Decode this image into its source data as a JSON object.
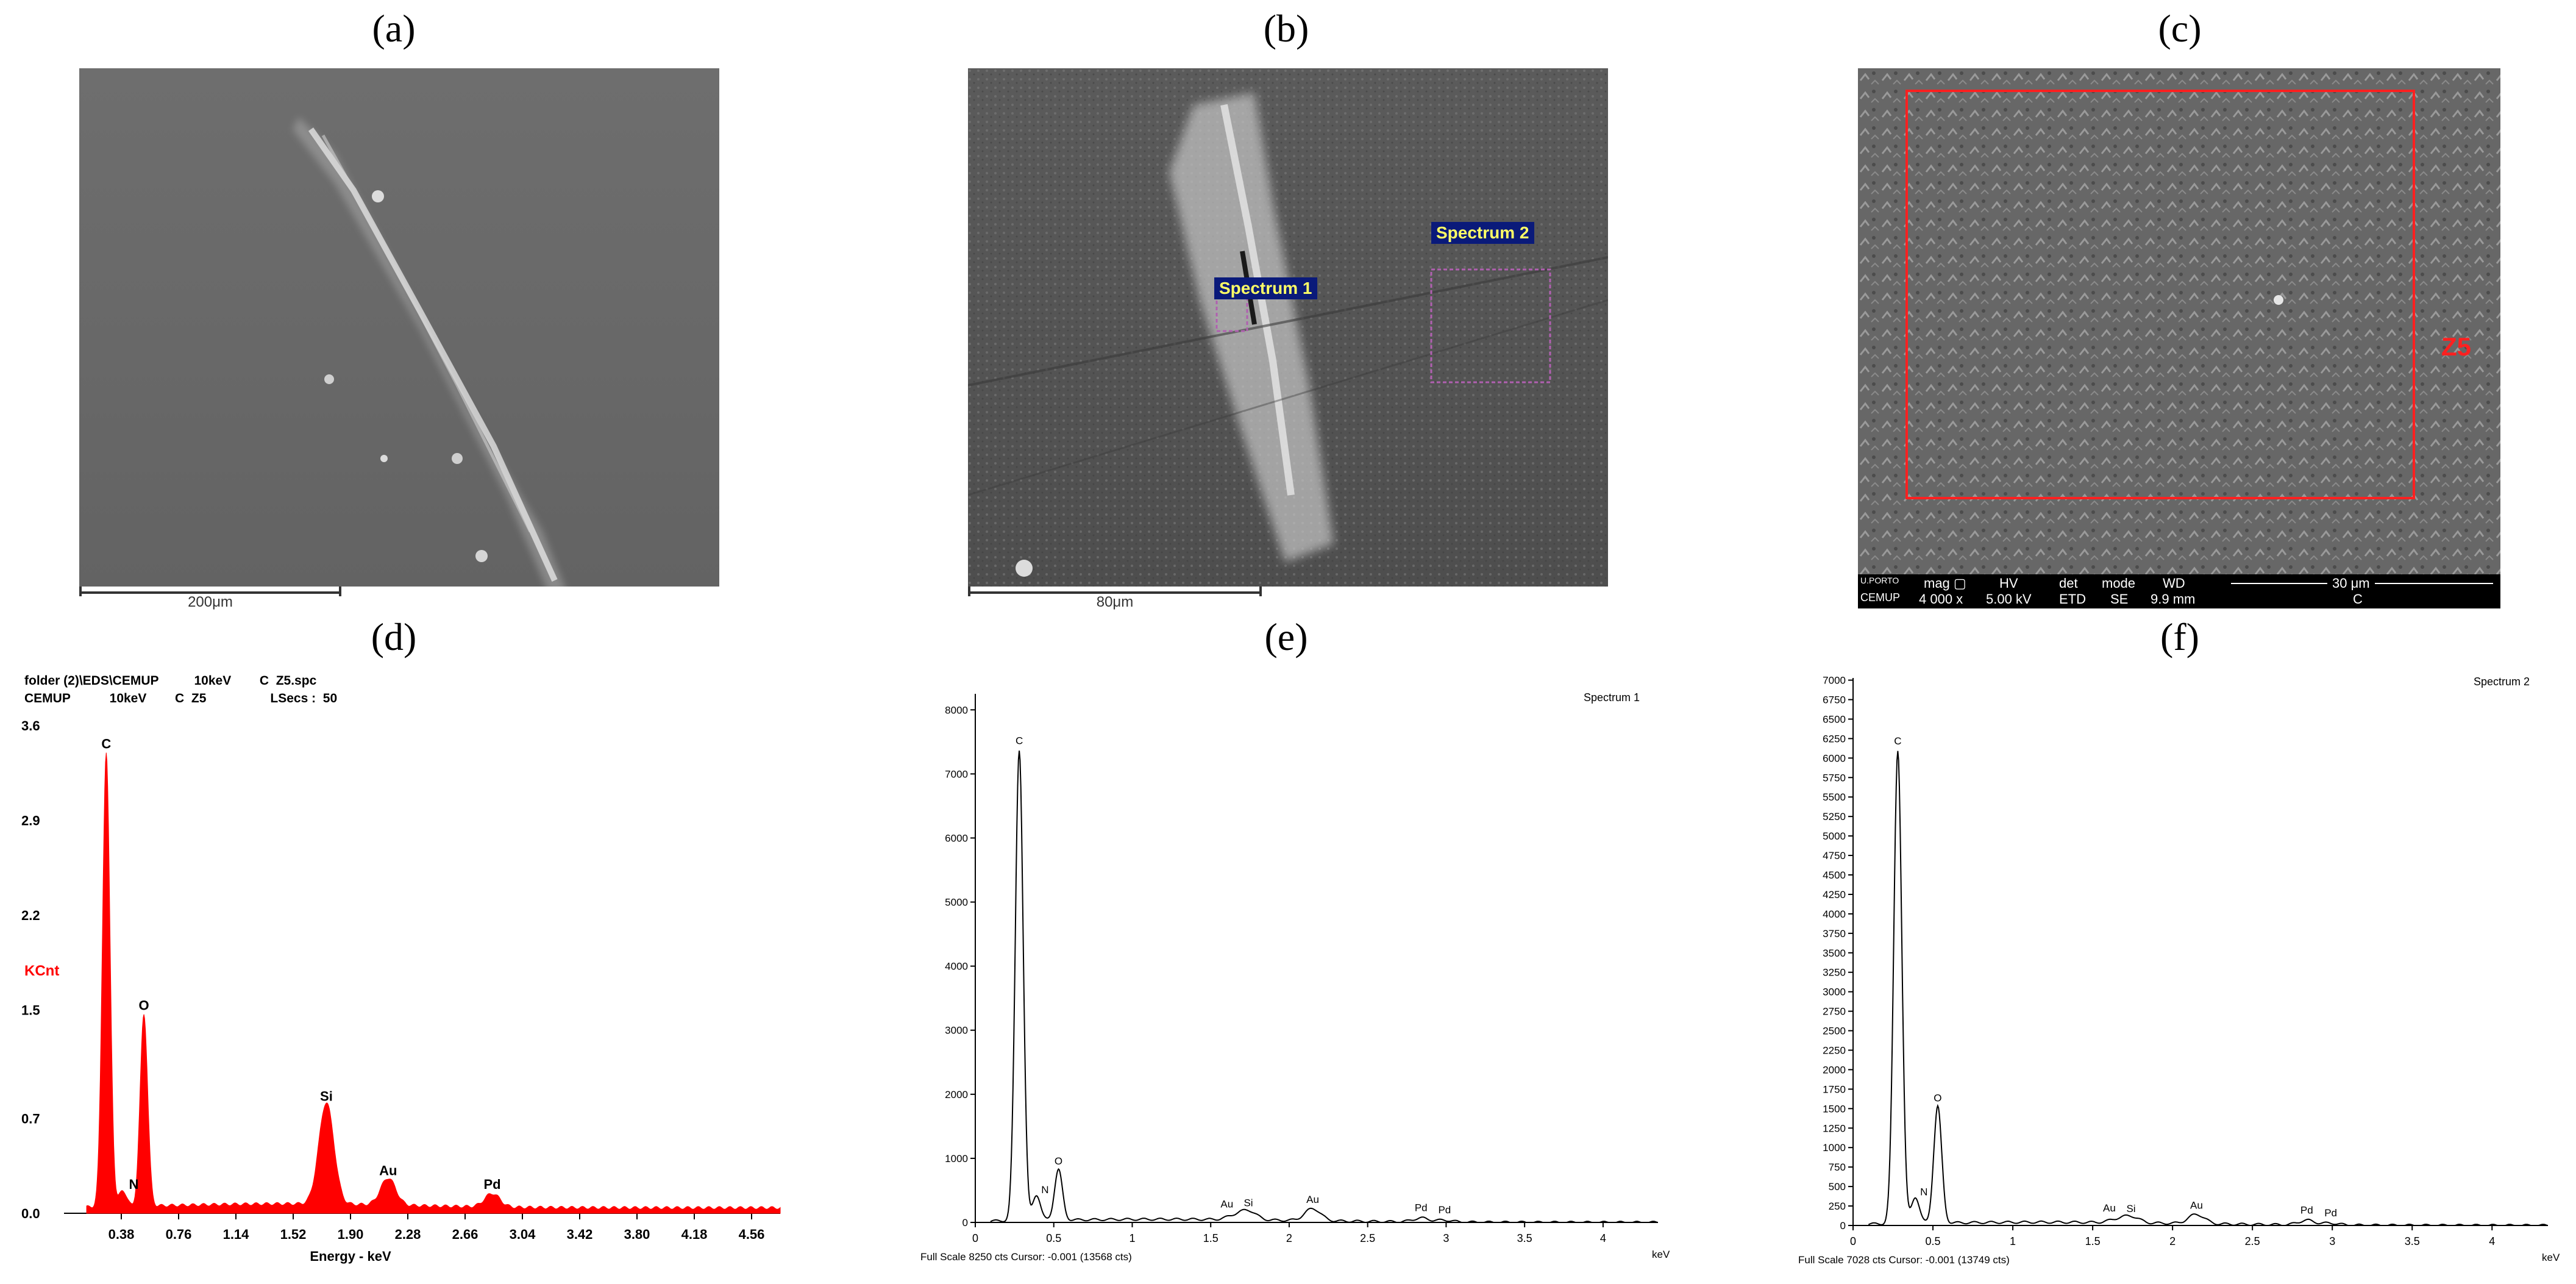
{
  "panels": {
    "a": {
      "letter": "(a)",
      "scale_label": "200μm"
    },
    "b": {
      "letter": "(b)",
      "scale_label": "80μm",
      "spectrum1_label": "Spectrum 1",
      "spectrum2_label": "Spectrum 2"
    },
    "c": {
      "letter": "(c)",
      "region_label": "Z5",
      "info_bar": {
        "logo": "U.PORTO",
        "logo2": "CEMUP",
        "mag_label": "mag ▢",
        "mag": "4 000 x",
        "hv_label": "HV",
        "hv": "5.00 kV",
        "det_label": "det",
        "det": "ETD",
        "mode_label": "mode",
        "mode": "SE",
        "wd_label": "WD",
        "wd": "9.9 mm",
        "scale": "30 μm",
        "sample": "C"
      }
    },
    "d": {
      "letter": "(d)"
    },
    "e": {
      "letter": "(e)"
    },
    "f": {
      "letter": "(f)"
    }
  },
  "chart_data": [
    {
      "panel": "d",
      "type": "area",
      "header_line1": "folder (2)\\EDS\\CEMUP          10keV        C  Z5.spc",
      "header_line2": "CEMUP           10keV        C  Z5                  LSecs :  50",
      "ylabel": "KCnt",
      "xlabel": "Energy - keV",
      "xlim": [
        0,
        4.75
      ],
      "ylim": [
        0,
        3.6
      ],
      "yticks": [
        "0.0",
        "0.7",
        "1.5",
        "2.2",
        "2.9",
        "3.6"
      ],
      "xticks": [
        "0.38",
        "0.76",
        "1.14",
        "1.52",
        "1.90",
        "2.28",
        "2.66",
        "3.04",
        "3.42",
        "3.80",
        "4.18",
        "4.56"
      ],
      "peaks": [
        {
          "label": "C",
          "x": 0.28,
          "y": 3.35
        },
        {
          "label": "N",
          "x": 0.39,
          "y": 0.12
        },
        {
          "label": "O",
          "x": 0.53,
          "y": 1.42
        },
        {
          "label": "Si",
          "x": 1.74,
          "y": 0.75
        },
        {
          "label": "Au",
          "x": 2.15,
          "y": 0.2
        },
        {
          "label": "Pd",
          "x": 2.84,
          "y": 0.1
        }
      ],
      "color": "#ff0000"
    },
    {
      "panel": "e",
      "type": "line",
      "title": "Spectrum 1",
      "footer": "Full Scale 8250 cts Cursor: -0.001  (13568 cts)",
      "xunit": "keV",
      "xlim": [
        0,
        4.35
      ],
      "ylim": [
        0,
        8250
      ],
      "yticks": [
        "0",
        "1000",
        "2000",
        "3000",
        "4000",
        "5000",
        "6000",
        "7000",
        "8000"
      ],
      "xticks": [
        "0",
        "0.5",
        "1",
        "1.5",
        "2",
        "2.5",
        "3",
        "3.5",
        "4"
      ],
      "peaks": [
        {
          "label": "C",
          "x": 0.28,
          "y": 7350
        },
        {
          "label": "N",
          "x": 0.39,
          "y": 400
        },
        {
          "label": "O",
          "x": 0.53,
          "y": 790
        },
        {
          "label": "Au",
          "x": 1.65,
          "y": 60
        },
        {
          "label": "Si",
          "x": 1.74,
          "y": 140
        },
        {
          "label": "Au",
          "x": 2.15,
          "y": 190
        },
        {
          "label": "Pd",
          "x": 2.84,
          "y": 60
        },
        {
          "label": "Pd",
          "x": 2.99,
          "y": 30
        }
      ]
    },
    {
      "panel": "f",
      "type": "line",
      "title": "Spectrum 2",
      "footer": "Full Scale 7028 cts Cursor: -0.001  (13749 cts)",
      "xunit": "keV",
      "xlim": [
        0,
        4.35
      ],
      "ylim": [
        0,
        7028
      ],
      "yticks": [
        "0",
        "250",
        "500",
        "750",
        "1000",
        "1250",
        "1500",
        "1750",
        "2000",
        "2250",
        "2500",
        "2750",
        "3000",
        "3250",
        "3500",
        "3750",
        "4000",
        "4250",
        "4500",
        "4750",
        "5000",
        "5250",
        "5500",
        "5750",
        "6000",
        "6250",
        "6500",
        "6750",
        "7000"
      ],
      "xticks": [
        "0",
        "0.5",
        "1",
        "1.5",
        "2",
        "2.5",
        "3",
        "3.5",
        "4"
      ],
      "peaks": [
        {
          "label": "C",
          "x": 0.28,
          "y": 6080
        },
        {
          "label": "N",
          "x": 0.39,
          "y": 340
        },
        {
          "label": "O",
          "x": 0.53,
          "y": 1500
        },
        {
          "label": "Au",
          "x": 1.65,
          "y": 40
        },
        {
          "label": "Si",
          "x": 1.74,
          "y": 80
        },
        {
          "label": "Au",
          "x": 2.15,
          "y": 120
        },
        {
          "label": "Pd",
          "x": 2.84,
          "y": 60
        },
        {
          "label": "Pd",
          "x": 2.99,
          "y": 25
        }
      ]
    }
  ]
}
